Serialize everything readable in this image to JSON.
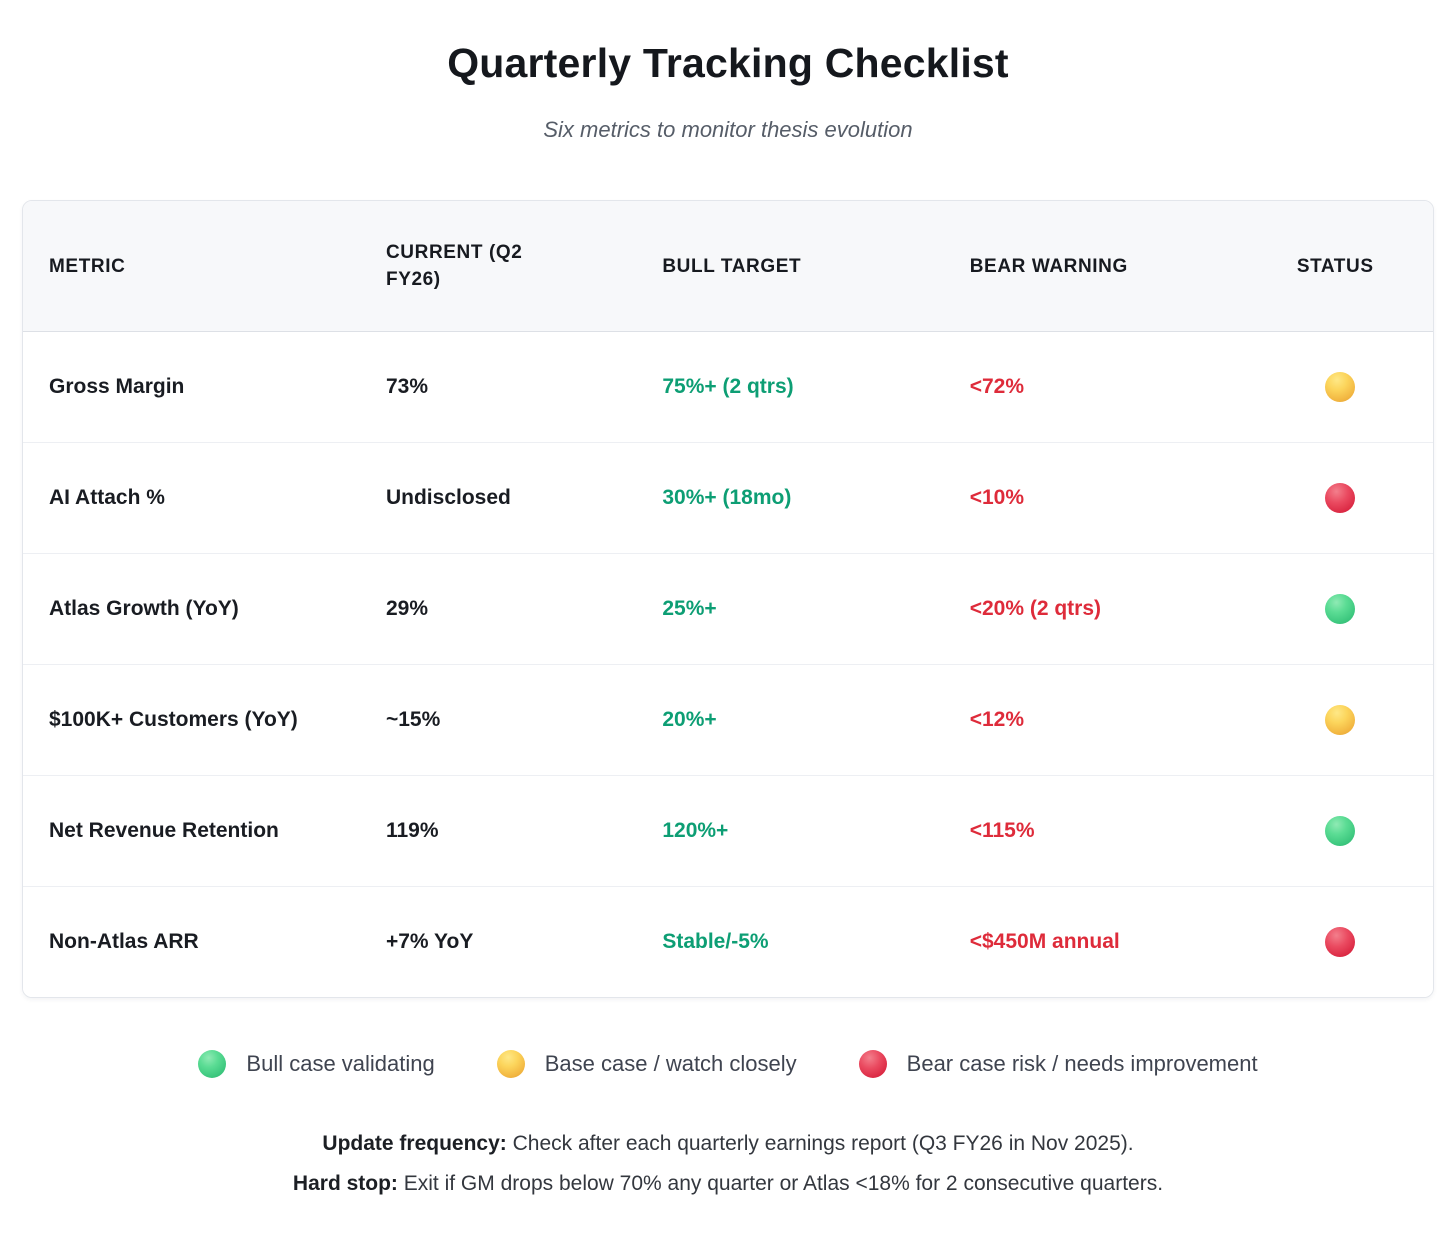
{
  "page": {
    "title": "Quarterly Tracking Checklist",
    "subtitle": "Six metrics to monitor thesis evolution"
  },
  "table": {
    "headers": {
      "metric": "METRIC",
      "current": "CURRENT (Q2 FY26)",
      "bull": "BULL TARGET",
      "bear": "BEAR WARNING",
      "status": "STATUS"
    },
    "rows": [
      {
        "metric": "Gross Margin",
        "current": "73%",
        "bull": "75%+ (2 qtrs)",
        "bear": "<72%",
        "status": "yellow"
      },
      {
        "metric": "AI Attach %",
        "current": "Undisclosed",
        "bull": "30%+ (18mo)",
        "bear": "<10%",
        "status": "red"
      },
      {
        "metric": "Atlas Growth (YoY)",
        "current": "29%",
        "bull": "25%+",
        "bear": "<20% (2 qtrs)",
        "status": "green"
      },
      {
        "metric": "$100K+ Customers (YoY)",
        "current": "~15%",
        "bull": "20%+",
        "bear": "<12%",
        "status": "yellow"
      },
      {
        "metric": "Net Revenue Retention",
        "current": "119%",
        "bull": "120%+",
        "bear": "<115%",
        "status": "green"
      },
      {
        "metric": "Non-Atlas ARR",
        "current": "+7% YoY",
        "bull": "Stable/-5%",
        "bear": "<$450M annual",
        "status": "red"
      }
    ]
  },
  "legend": {
    "items": [
      {
        "status": "green",
        "label": "Bull case validating"
      },
      {
        "status": "yellow",
        "label": "Base case / watch closely"
      },
      {
        "status": "red",
        "label": "Bear case risk / needs improvement"
      }
    ]
  },
  "footer": {
    "line1_label": "Update frequency:",
    "line1_text": " Check after each quarterly earnings report (Q3 FY26 in Nov 2025).",
    "line2_label": "Hard stop:",
    "line2_text": " Exit if GM drops below 70% any quarter or Atlas <18% for 2 consecutive quarters."
  },
  "colors": {
    "bull_green": "#0d9e74",
    "bear_red": "#de2b3a",
    "status_green": "#3cc77e",
    "status_yellow": "#f2b641",
    "status_red": "#da2742"
  }
}
